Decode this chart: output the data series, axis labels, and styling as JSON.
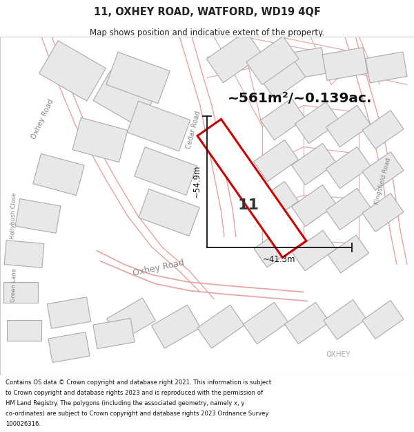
{
  "title": "11, OXHEY ROAD, WATFORD, WD19 4QF",
  "subtitle": "Map shows position and indicative extent of the property.",
  "area_text": "~561m²/~0.139ac.",
  "dim1": "~54.9m",
  "dim2": "~41.3m",
  "label_number": "11",
  "footer": "Contains OS data © Crown copyright and database right 2021. This information is subject to Crown copyright and database rights 2023 and is reproduced with the permission of HM Land Registry. The polygons (including the associated geometry, namely x, y co-ordinates) are subject to Crown copyright and database rights 2023 Ordnance Survey 100026316.",
  "map_bg": "#ffffff",
  "building_fill": "#e8e8e8",
  "building_edge": "#aaaaaa",
  "road_line_color": "#e8a0a0",
  "plot_fill": "#ffffff",
  "plot_edge": "#cc0000",
  "dim_color": "#111111",
  "label_color": "#333333",
  "road_label_color": "#888888",
  "area_text_color": "#111111",
  "title_color": "#222222",
  "footer_color": "#111111"
}
